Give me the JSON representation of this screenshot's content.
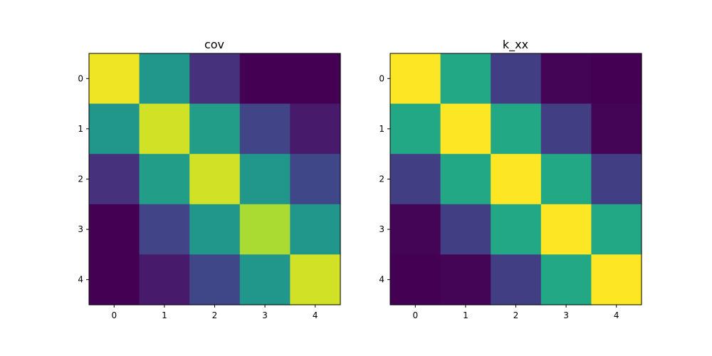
{
  "chart_data": [
    {
      "type": "heatmap",
      "title": "cov",
      "x_tick_labels": [
        "0",
        "1",
        "2",
        "3",
        "4"
      ],
      "y_tick_labels": [
        "0",
        "1",
        "2",
        "3",
        "4"
      ],
      "colormap": "viridis",
      "values": [
        [
          0.98,
          0.52,
          0.14,
          0.0,
          0.0
        ],
        [
          0.52,
          0.93,
          0.55,
          0.2,
          0.07
        ],
        [
          0.14,
          0.55,
          0.93,
          0.52,
          0.21
        ],
        [
          0.0,
          0.2,
          0.52,
          0.87,
          0.52
        ],
        [
          0.0,
          0.07,
          0.21,
          0.52,
          0.93
        ]
      ]
    },
    {
      "type": "heatmap",
      "title": "k_xx",
      "x_tick_labels": [
        "0",
        "1",
        "2",
        "3",
        "4"
      ],
      "y_tick_labels": [
        "0",
        "1",
        "2",
        "3",
        "4"
      ],
      "colormap": "viridis",
      "values": [
        [
          1.0,
          0.6,
          0.18,
          0.01,
          0.0
        ],
        [
          0.6,
          1.0,
          0.6,
          0.18,
          0.01
        ],
        [
          0.18,
          0.6,
          1.0,
          0.6,
          0.18
        ],
        [
          0.01,
          0.18,
          0.6,
          1.0,
          0.6
        ],
        [
          0.0,
          0.01,
          0.18,
          0.6,
          1.0
        ]
      ]
    }
  ]
}
